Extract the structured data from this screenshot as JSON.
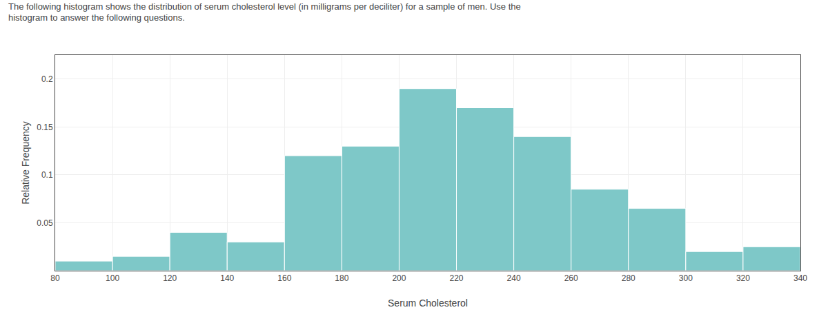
{
  "chart_data": {
    "type": "histogram",
    "title": "The following histogram shows the distribution of serum cholesterol level (in milligrams per deciliter) for a sample of men. Use the",
    "subtitle": "histogram to answer the following questions.",
    "xlabel": "Serum Cholesterol",
    "ylabel": "Relative Frequency",
    "bins": [
      80,
      100,
      120,
      140,
      160,
      180,
      200,
      220,
      240,
      260,
      280,
      300,
      320,
      340
    ],
    "values": [
      0.01,
      0.015,
      0.04,
      0.03,
      0.12,
      0.13,
      0.19,
      0.17,
      0.14,
      0.085,
      0.065,
      0.02,
      0.025
    ],
    "color": "#7ec8c8",
    "xlim": [
      80,
      340
    ],
    "ylim": [
      0,
      0.225
    ],
    "xticks": [
      80,
      100,
      120,
      140,
      160,
      180,
      200,
      220,
      240,
      260,
      280,
      300,
      320,
      340
    ],
    "yticks": [
      0.05,
      0.1,
      0.15,
      0.2
    ],
    "grid": true
  }
}
